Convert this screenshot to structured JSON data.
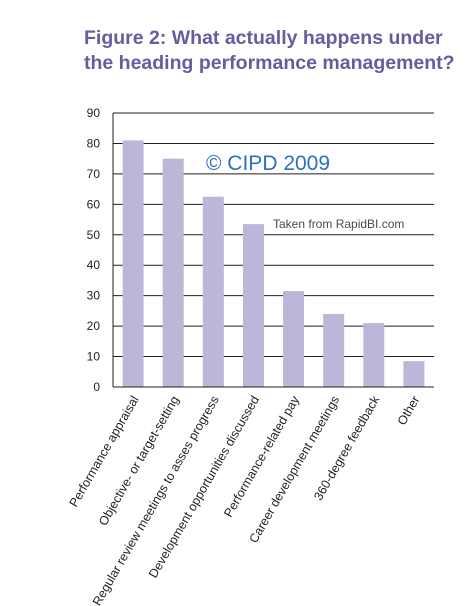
{
  "chart_data": {
    "type": "bar",
    "title_lines": [
      "Figure 2: What actually happens under",
      "the heading performance management?"
    ],
    "categories": [
      "Performance appraisal",
      "Objective- or target-setting",
      "Regular review meetings to asses progress",
      "Development opportunities discussed",
      "Performance-related pay",
      "Career development meetings",
      "360-degree feedback",
      "Other"
    ],
    "values": [
      81,
      75,
      62.5,
      53.5,
      31.5,
      24,
      21,
      8.5
    ],
    "ylim": [
      0,
      90
    ],
    "yticks": [
      0,
      10,
      20,
      30,
      40,
      50,
      60,
      70,
      80,
      90
    ],
    "grid": true,
    "legend": "none"
  },
  "annotations": {
    "copyright": "© CIPD 2009",
    "source": "Taken from RapidBI.com"
  },
  "colors": {
    "title": "#6a5a9e",
    "bar": "#bcb7d8",
    "grid": "#231f20",
    "copyright": "#2f6fc0"
  }
}
